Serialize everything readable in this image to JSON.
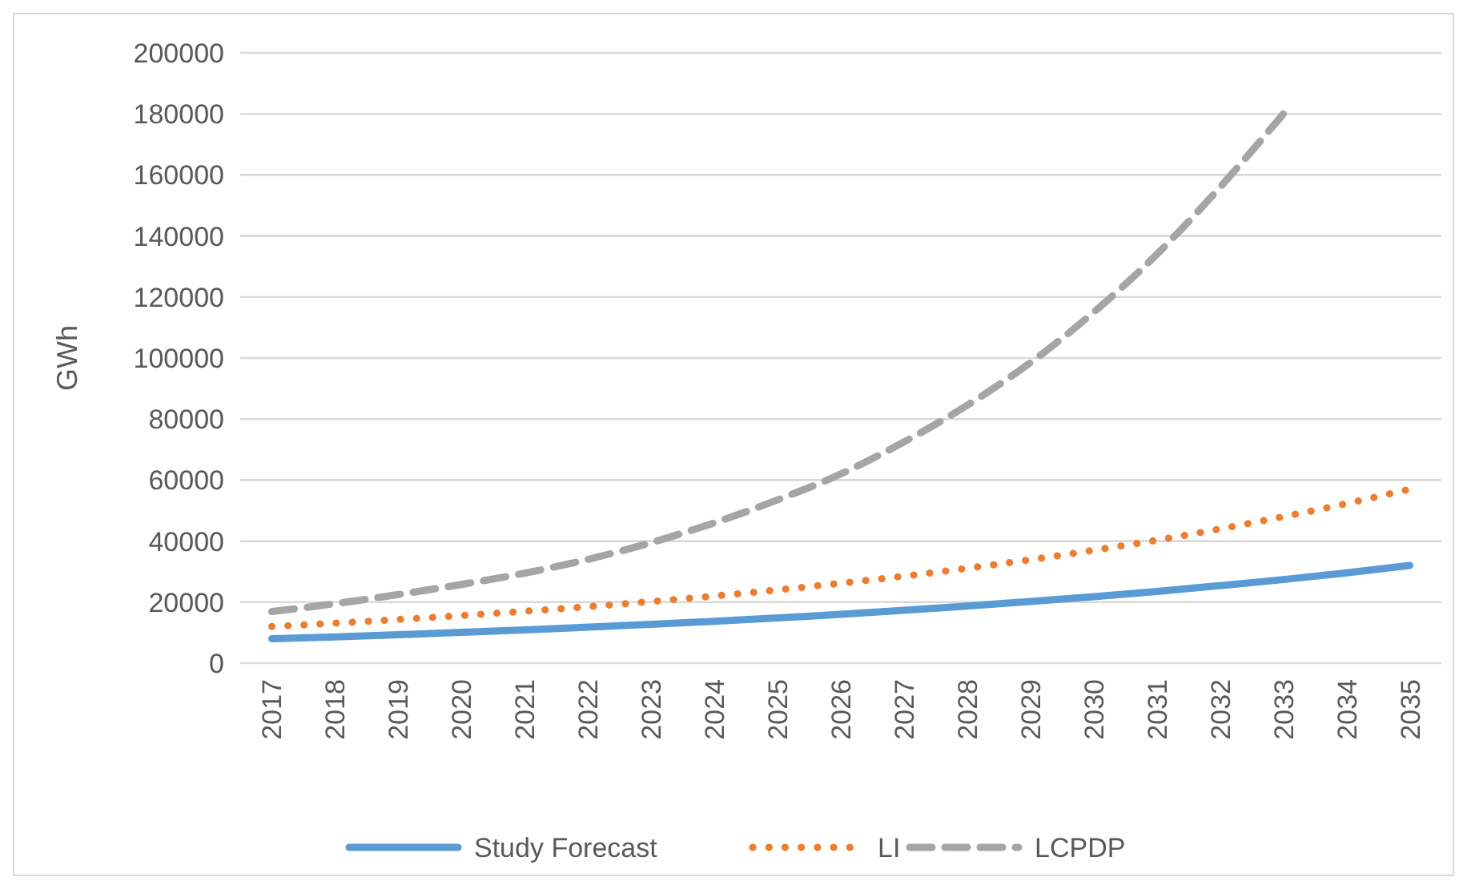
{
  "chart_data": {
    "type": "line",
    "ylabel": "GWh",
    "categories": [
      "2017",
      "2018",
      "2019",
      "2020",
      "2021",
      "2022",
      "2023",
      "2024",
      "2025",
      "2026",
      "2027",
      "2028",
      "2029",
      "2030",
      "2031",
      "2032",
      "2033",
      "2034",
      "2035"
    ],
    "ylim": [
      0,
      200000
    ],
    "yticks": [
      0,
      20000,
      40000,
      60000,
      80000,
      100000,
      120000,
      140000,
      160000,
      180000,
      200000
    ],
    "grid": "y",
    "legend": "bottom",
    "series": [
      {
        "name": "Study Forecast",
        "color": "#5b9bd5",
        "line_style": "solid",
        "values": [
          8000,
          8600,
          9300,
          10100,
          10900,
          11800,
          12700,
          13700,
          14800,
          16000,
          17300,
          18700,
          20200,
          21800,
          23500,
          25400,
          27400,
          29600,
          32000
        ]
      },
      {
        "name": "LI",
        "color": "#ed7d31",
        "line_style": "dotted",
        "values": [
          12000,
          13100,
          14300,
          15600,
          17000,
          18500,
          20200,
          22000,
          24000,
          26200,
          28500,
          31100,
          33900,
          37000,
          40300,
          44000,
          48000,
          52300,
          57000
        ]
      },
      {
        "name": "LCPDP",
        "color": "#a5a5a5",
        "line_style": "dashed",
        "values": [
          16900,
          19500,
          22500,
          25800,
          29500,
          34000,
          39500,
          46000,
          53500,
          62000,
          72500,
          84500,
          98500,
          115000,
          134000,
          156000,
          180000,
          null,
          null
        ]
      }
    ]
  }
}
